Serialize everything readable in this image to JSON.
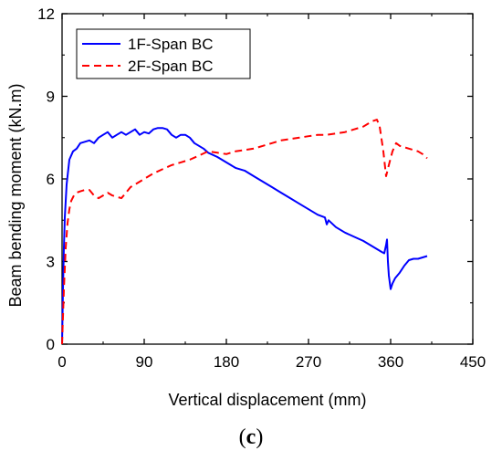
{
  "panel_label": {
    "open": "(",
    "letter": "c",
    "close": ")"
  },
  "chart_data": {
    "type": "line",
    "title": "",
    "xlabel": "Vertical displacement (mm)",
    "ylabel": "Beam bending moment (kN.m)",
    "xlim": [
      0,
      450
    ],
    "ylim": [
      0,
      12
    ],
    "xticks": [
      "0",
      "90",
      "180",
      "270",
      "360",
      "450"
    ],
    "yticks": [
      "0",
      "3",
      "6",
      "9",
      "12"
    ],
    "legend_position": "top-left",
    "grid": false,
    "series": [
      {
        "name": "1F-Span BC",
        "color": "#0000ff",
        "style": "solid",
        "x": [
          0,
          1,
          2,
          3,
          5,
          8,
          12,
          16,
          20,
          25,
          30,
          35,
          40,
          45,
          50,
          55,
          60,
          65,
          70,
          75,
          80,
          85,
          90,
          95,
          100,
          105,
          110,
          115,
          120,
          125,
          130,
          135,
          140,
          145,
          150,
          155,
          160,
          170,
          180,
          190,
          200,
          210,
          220,
          230,
          240,
          250,
          260,
          270,
          280,
          288,
          290,
          292,
          300,
          310,
          320,
          330,
          340,
          350,
          353,
          355,
          356,
          357,
          358,
          360,
          362,
          365,
          370,
          375,
          380,
          385,
          390,
          395,
          400
        ],
        "y": [
          0,
          2.0,
          3.5,
          4.6,
          5.8,
          6.7,
          7.0,
          7.1,
          7.3,
          7.35,
          7.4,
          7.3,
          7.5,
          7.6,
          7.7,
          7.5,
          7.6,
          7.7,
          7.6,
          7.7,
          7.8,
          7.6,
          7.7,
          7.65,
          7.8,
          7.85,
          7.85,
          7.8,
          7.6,
          7.5,
          7.6,
          7.6,
          7.5,
          7.3,
          7.2,
          7.1,
          6.95,
          6.8,
          6.6,
          6.4,
          6.3,
          6.1,
          5.9,
          5.7,
          5.5,
          5.3,
          5.1,
          4.9,
          4.7,
          4.6,
          4.35,
          4.5,
          4.25,
          4.05,
          3.9,
          3.75,
          3.55,
          3.35,
          3.3,
          3.6,
          3.8,
          3.0,
          2.5,
          2.0,
          2.2,
          2.4,
          2.6,
          2.85,
          3.05,
          3.1,
          3.1,
          3.15,
          3.2
        ]
      },
      {
        "name": "2F-Span BC",
        "color": "#ff0000",
        "style": "dashed",
        "x": [
          0,
          2,
          4,
          6,
          8,
          10,
          13,
          16,
          20,
          25,
          30,
          35,
          40,
          45,
          50,
          55,
          60,
          65,
          70,
          75,
          80,
          90,
          100,
          110,
          120,
          130,
          140,
          150,
          160,
          170,
          180,
          190,
          200,
          210,
          220,
          230,
          240,
          250,
          260,
          270,
          280,
          290,
          300,
          310,
          320,
          330,
          340,
          345,
          348,
          352,
          355,
          358,
          362,
          366,
          370,
          380,
          390,
          395,
          400
        ],
        "y": [
          0,
          2.0,
          3.5,
          4.4,
          4.9,
          5.2,
          5.4,
          5.5,
          5.55,
          5.6,
          5.6,
          5.4,
          5.3,
          5.4,
          5.5,
          5.4,
          5.35,
          5.3,
          5.5,
          5.7,
          5.8,
          6.0,
          6.2,
          6.35,
          6.5,
          6.6,
          6.7,
          6.85,
          7.0,
          6.95,
          6.9,
          7.0,
          7.05,
          7.1,
          7.2,
          7.3,
          7.4,
          7.45,
          7.5,
          7.55,
          7.6,
          7.6,
          7.65,
          7.7,
          7.8,
          7.9,
          8.1,
          8.15,
          7.9,
          7.0,
          6.1,
          6.5,
          7.0,
          7.3,
          7.2,
          7.1,
          7.0,
          6.9,
          6.75
        ]
      }
    ]
  }
}
